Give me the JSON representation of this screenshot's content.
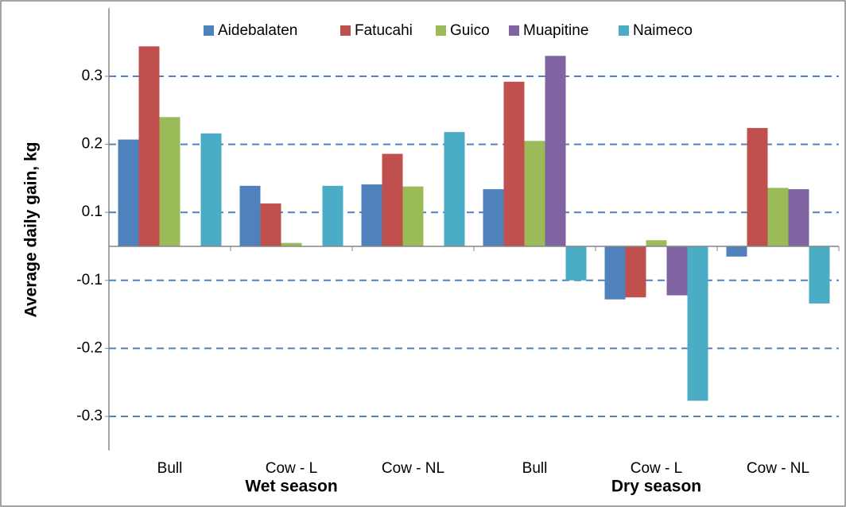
{
  "chart_data": {
    "type": "bar",
    "y_label": "Average daily gain, kg",
    "categories": [
      "Bull",
      "Cow - L",
      "Cow - NL",
      "Bull",
      "Cow - L",
      "Cow - NL"
    ],
    "category_groups": [
      "Wet season",
      "Dry season"
    ],
    "series": [
      {
        "name": "Aidebalaten",
        "color": "#4f81bd",
        "values": [
          0.157,
          0.089,
          0.091,
          0.084,
          -0.078,
          -0.015
        ]
      },
      {
        "name": "Fatucahi",
        "color": "#c0504d",
        "values": [
          0.294,
          0.063,
          0.136,
          0.242,
          -0.075,
          0.174
        ]
      },
      {
        "name": "Guico",
        "color": "#9bbb59",
        "values": [
          0.19,
          0.005,
          0.088,
          0.155,
          0.009,
          0.086
        ]
      },
      {
        "name": "Muapitine",
        "color": "#8064a2",
        "values": [
          null,
          null,
          null,
          0.28,
          -0.072,
          0.084
        ]
      },
      {
        "name": "Naimeco",
        "color": "#4bacc6",
        "values": [
          0.166,
          0.089,
          0.168,
          -0.05,
          -0.227,
          -0.084
        ]
      }
    ],
    "ylim": [
      -0.3,
      0.35
    ],
    "yticks": [
      {
        "value": 0.25,
        "label": "0.3"
      },
      {
        "value": 0.15,
        "label": "0.2"
      },
      {
        "value": 0.05,
        "label": "0.1"
      },
      {
        "value": -0.05,
        "label": "-0.1"
      },
      {
        "value": -0.15,
        "label": "-0.2"
      },
      {
        "value": -0.25,
        "label": "-0.3"
      }
    ],
    "grid": true,
    "legend": "top"
  }
}
